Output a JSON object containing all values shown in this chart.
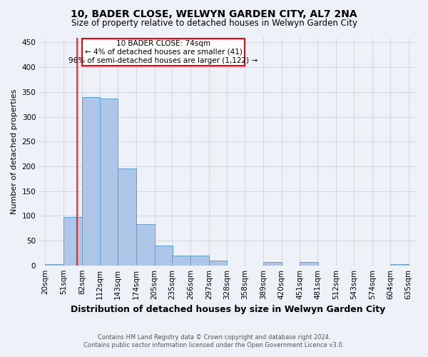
{
  "title": "10, BADER CLOSE, WELWYN GARDEN CITY, AL7 2NA",
  "subtitle": "Size of property relative to detached houses in Welwyn Garden City",
  "xlabel": "Distribution of detached houses by size in Welwyn Garden City",
  "ylabel": "Number of detached properties",
  "footer_line1": "Contains HM Land Registry data © Crown copyright and database right 2024.",
  "footer_line2": "Contains public sector information licensed under the Open Government Licence v3.0.",
  "annotation_title": "10 BADER CLOSE: 74sqm",
  "annotation_line1": "← 4% of detached houses are smaller (41)",
  "annotation_line2": "96% of semi-detached houses are larger (1,122) →",
  "property_size_sqm": 74,
  "bar_left_edges": [
    20,
    51,
    82,
    112,
    143,
    174,
    205,
    235,
    266,
    297,
    328,
    358,
    389,
    420,
    451,
    481,
    512,
    543,
    574,
    604
  ],
  "bar_widths": [
    31,
    31,
    31,
    31,
    31,
    31,
    31,
    31,
    31,
    31,
    31,
    31,
    31,
    31,
    31,
    31,
    31,
    31,
    31,
    31
  ],
  "bar_heights": [
    3,
    97,
    340,
    337,
    196,
    83,
    40,
    20,
    20,
    10,
    0,
    0,
    7,
    0,
    7,
    0,
    0,
    0,
    0,
    3
  ],
  "bar_color": "#aec6e8",
  "bar_edge_color": "#5a9fd4",
  "tick_labels": [
    "20sqm",
    "51sqm",
    "82sqm",
    "112sqm",
    "143sqm",
    "174sqm",
    "205sqm",
    "235sqm",
    "266sqm",
    "297sqm",
    "328sqm",
    "358sqm",
    "389sqm",
    "420sqm",
    "451sqm",
    "481sqm",
    "512sqm",
    "543sqm",
    "574sqm",
    "604sqm",
    "635sqm"
  ],
  "tick_positions": [
    20,
    51,
    82,
    112,
    143,
    174,
    205,
    235,
    266,
    297,
    328,
    358,
    389,
    420,
    451,
    481,
    512,
    543,
    574,
    604,
    635
  ],
  "ylim": [
    0,
    460
  ],
  "xlim": [
    10,
    650
  ],
  "red_line_x": 74,
  "grid_color": "#d0d8e8",
  "bg_color": "#eef2f8",
  "yticks": [
    0,
    50,
    100,
    150,
    200,
    250,
    300,
    350,
    400,
    450
  ]
}
